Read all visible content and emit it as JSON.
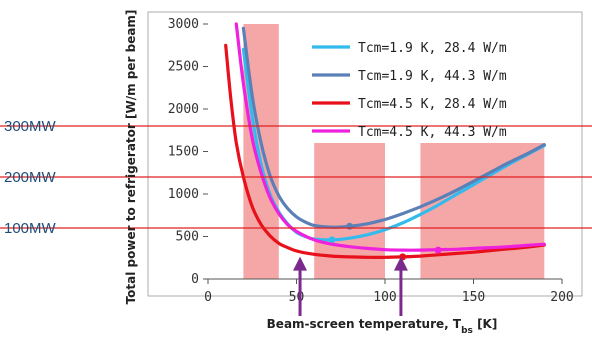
{
  "chart_data": {
    "type": "line",
    "xlabel_main": "Beam-screen temperature, T",
    "xlabel_sub": "bs",
    "xlabel_unit": " [K]",
    "ylabel": "Total power to refrigerator [W/m per beam]",
    "xlim": [
      0,
      200
    ],
    "ylim": [
      0,
      3000
    ],
    "x_ticks": [
      "0",
      "50",
      "100",
      "150",
      "200"
    ],
    "y_ticks": [
      "0",
      "500",
      "1000",
      "1500",
      "2000",
      "2500",
      "3000"
    ],
    "legend_position": "top-right",
    "series": [
      {
        "name": "Tcm=1.9 K, 28.4 W/m",
        "color": "#33bbee",
        "points": [
          [
            20,
            2700
          ],
          [
            25,
            1900
          ],
          [
            30,
            1350
          ],
          [
            35,
            1000
          ],
          [
            40,
            790
          ],
          [
            45,
            650
          ],
          [
            50,
            550
          ],
          [
            55,
            500
          ],
          [
            60,
            470
          ],
          [
            70,
            460
          ],
          [
            80,
            480
          ],
          [
            90,
            520
          ],
          [
            100,
            580
          ],
          [
            110,
            660
          ],
          [
            120,
            760
          ],
          [
            130,
            870
          ],
          [
            140,
            990
          ],
          [
            150,
            1110
          ],
          [
            160,
            1230
          ],
          [
            170,
            1350
          ],
          [
            180,
            1460
          ],
          [
            190,
            1570
          ]
        ],
        "markers": [
          [
            70,
            460
          ]
        ]
      },
      {
        "name": "Tcm=1.9 K, 44.3 W/m",
        "color": "#5b80b8",
        "points": [
          [
            20,
            2950
          ],
          [
            25,
            2150
          ],
          [
            30,
            1600
          ],
          [
            35,
            1220
          ],
          [
            40,
            980
          ],
          [
            45,
            830
          ],
          [
            50,
            730
          ],
          [
            55,
            670
          ],
          [
            60,
            630
          ],
          [
            70,
            610
          ],
          [
            80,
            620
          ],
          [
            90,
            650
          ],
          [
            100,
            700
          ],
          [
            110,
            770
          ],
          [
            120,
            850
          ],
          [
            130,
            940
          ],
          [
            140,
            1040
          ],
          [
            150,
            1150
          ],
          [
            160,
            1260
          ],
          [
            170,
            1370
          ],
          [
            180,
            1470
          ],
          [
            190,
            1580
          ]
        ],
        "markers": [
          [
            80,
            620
          ]
        ]
      },
      {
        "name": "Tcm=4.5 K, 28.4 W/m",
        "color": "#e8101a",
        "points": [
          [
            10,
            2750
          ],
          [
            13,
            2100
          ],
          [
            16,
            1600
          ],
          [
            20,
            1200
          ],
          [
            25,
            850
          ],
          [
            30,
            640
          ],
          [
            35,
            510
          ],
          [
            40,
            420
          ],
          [
            45,
            370
          ],
          [
            50,
            330
          ],
          [
            60,
            290
          ],
          [
            70,
            270
          ],
          [
            80,
            260
          ],
          [
            90,
            255
          ],
          [
            100,
            255
          ],
          [
            110,
            260
          ],
          [
            120,
            270
          ],
          [
            130,
            285
          ],
          [
            140,
            300
          ],
          [
            150,
            315
          ],
          [
            160,
            335
          ],
          [
            170,
            355
          ],
          [
            180,
            375
          ],
          [
            190,
            400
          ]
        ],
        "markers": [
          [
            110,
            260
          ]
        ]
      },
      {
        "name": "Tcm=4.5 K, 44.3 W/m",
        "color": "#ee22dd",
        "points": [
          [
            16,
            3000
          ],
          [
            20,
            2300
          ],
          [
            25,
            1650
          ],
          [
            30,
            1250
          ],
          [
            35,
            960
          ],
          [
            40,
            770
          ],
          [
            45,
            640
          ],
          [
            50,
            560
          ],
          [
            60,
            460
          ],
          [
            70,
            410
          ],
          [
            80,
            380
          ],
          [
            90,
            360
          ],
          [
            100,
            345
          ],
          [
            110,
            340
          ],
          [
            120,
            340
          ],
          [
            130,
            345
          ],
          [
            140,
            350
          ],
          [
            150,
            360
          ],
          [
            160,
            370
          ],
          [
            170,
            380
          ],
          [
            180,
            395
          ],
          [
            190,
            410
          ]
        ],
        "markers": [
          [
            130,
            340
          ]
        ]
      }
    ],
    "shaded_bands": [
      {
        "x": [
          20,
          40
        ],
        "y": [
          0,
          3000
        ]
      },
      {
        "x": [
          60,
          100
        ],
        "y": [
          0,
          1600
        ]
      },
      {
        "x": [
          120,
          190
        ],
        "y": [
          0,
          1600
        ]
      }
    ],
    "arrows": [
      {
        "x": 52,
        "y_from": 0,
        "y_to": 240
      },
      {
        "x": 109,
        "y_from": 0,
        "y_to": 240
      }
    ],
    "power_levels": [
      {
        "label": "300MW",
        "y": 1800
      },
      {
        "label": "200MW",
        "y": 1200
      },
      {
        "label": "100MW",
        "y": 600
      }
    ]
  }
}
